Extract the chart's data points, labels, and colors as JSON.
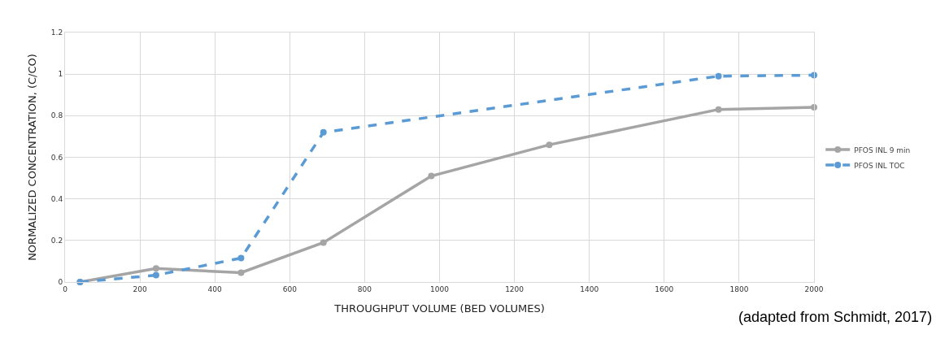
{
  "chart_data": {
    "type": "line",
    "xlabel": "THROUGHPUT VOLUME (BED VOLUMES)",
    "ylabel": "NORMALIZED CONCENTRATION, (C/CO)",
    "xlim": [
      0,
      2000
    ],
    "xticks": [
      0,
      200,
      400,
      600,
      800,
      1000,
      1200,
      1400,
      1600,
      1800,
      2000
    ],
    "ylim": [
      0,
      1.2
    ],
    "yticks": [
      0,
      0.2,
      0.4,
      0.6,
      0.8,
      1,
      1.2
    ],
    "grid": true,
    "legend": "right",
    "marker": "circle",
    "annotations": [
      "(adapted from Schmidt, 2017)"
    ],
    "series": [
      {
        "name": "PFOS INL 9 min",
        "color": "#a5a5a5",
        "line_style": "solid",
        "x": [
          40,
          243,
          470,
          690,
          978,
          1293,
          1745,
          2000
        ],
        "values": [
          0,
          0.065,
          0.045,
          0.19,
          0.51,
          0.66,
          0.83,
          0.84
        ]
      },
      {
        "name": "PFOS INL TOC",
        "color": "#5b9bd5",
        "line_style": "dashed",
        "x": [
          40,
          243,
          470,
          690,
          1745,
          2000
        ],
        "values": [
          0,
          0.033,
          0.115,
          0.72,
          0.99,
          0.995
        ]
      }
    ]
  }
}
